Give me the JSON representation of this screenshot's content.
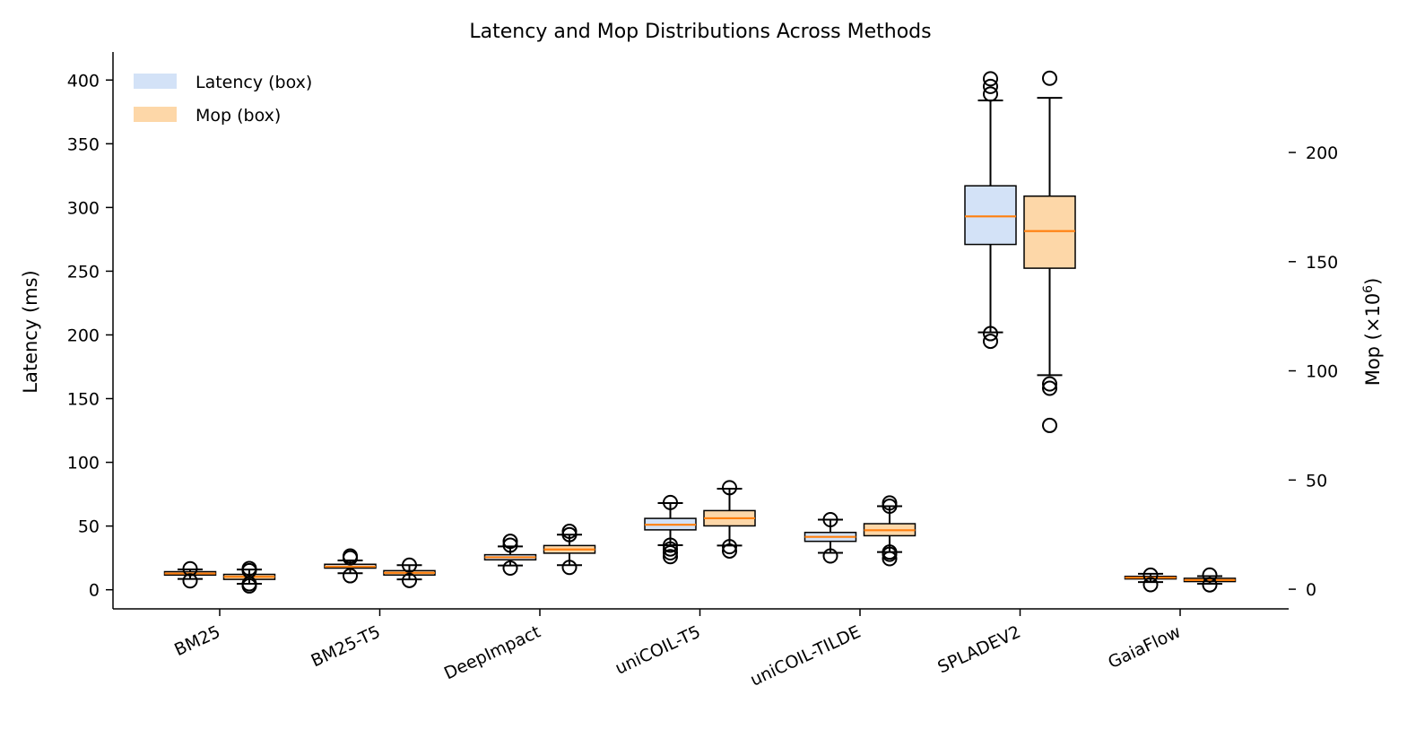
{
  "chart_data": {
    "type": "box",
    "title": "Latency and Mop Distributions Across Methods",
    "categories": [
      "BM25",
      "BM25-T5",
      "DeepImpact",
      "uniCOIL-T5",
      "uniCOIL-TILDE",
      "SPLADEV2",
      "GaiaFlow"
    ],
    "y_left": {
      "label": "Latency (ms)",
      "ticks": [
        0,
        50,
        100,
        150,
        200,
        250,
        300,
        350,
        400
      ],
      "lim": [
        -15,
        422
      ]
    },
    "y_right": {
      "label_main": "Mop (×10",
      "label_sup": "6",
      "label_end": ")",
      "ticks": [
        0,
        50,
        100,
        150,
        200
      ],
      "lim": [
        -9,
        246
      ]
    },
    "legend": {
      "position": "top-left",
      "entries": [
        "Latency (box)",
        "Mop (box)"
      ]
    },
    "colors": {
      "latency_fill": "#d3e2f7",
      "mop_fill": "#fdd7a8",
      "median": "#ff7f0e",
      "edge": "#000000"
    },
    "series": [
      {
        "name": "Latency (box)",
        "axis": "left",
        "boxes": [
          {
            "q1": 11.5,
            "median": 12.8,
            "q3": 14.2,
            "whisker_low": 8.5,
            "whisker_high": 16,
            "outliers": [
              7,
              16.5
            ]
          },
          {
            "q1": 17,
            "median": 18.2,
            "q3": 20,
            "whisker_low": 13,
            "whisker_high": 23,
            "outliers": [
              11,
              25,
              26.5
            ]
          },
          {
            "q1": 23.5,
            "median": 25.5,
            "q3": 27.5,
            "whisker_low": 19,
            "whisker_high": 34,
            "outliers": [
              17,
              35,
              38
            ]
          },
          {
            "q1": 47,
            "median": 51,
            "q3": 56,
            "whisker_low": 35,
            "whisker_high": 68,
            "outliers": [
              26,
              29,
              32,
              35,
              68.5
            ]
          },
          {
            "q1": 38,
            "median": 41.5,
            "q3": 45,
            "whisker_low": 29,
            "whisker_high": 55,
            "outliers": [
              26.5,
              55
            ]
          },
          {
            "q1": 271,
            "median": 293,
            "q3": 317,
            "whisker_low": 202,
            "whisker_high": 384,
            "outliers": [
              195,
              201,
              389,
              395,
              401
            ]
          },
          {
            "q1": 8.5,
            "median": 9.5,
            "q3": 10.5,
            "whisker_low": 6,
            "whisker_high": 12.5,
            "outliers": [
              4,
              11.5
            ]
          }
        ]
      },
      {
        "name": "Mop (box)",
        "axis": "right",
        "boxes": [
          {
            "q1": 4.5,
            "median": 5.7,
            "q3": 6.8,
            "whisker_low": 2.5,
            "whisker_high": 9,
            "outliers": [
              1.5,
              2.5,
              8.5,
              9.5
            ]
          },
          {
            "q1": 6.5,
            "median": 7.5,
            "q3": 8.5,
            "whisker_low": 4.5,
            "whisker_high": 11,
            "outliers": [
              4,
              11
            ]
          },
          {
            "q1": 16.5,
            "median": 18.2,
            "q3": 20,
            "whisker_low": 11,
            "whisker_high": 25,
            "outliers": [
              10,
              25,
              26.5
            ]
          },
          {
            "q1": 29,
            "median": 32.5,
            "q3": 36,
            "whisker_low": 20,
            "whisker_high": 46,
            "outliers": [
              17.5,
              19.5,
              46.5
            ]
          },
          {
            "q1": 24.5,
            "median": 27,
            "q3": 30,
            "whisker_low": 17,
            "whisker_high": 38,
            "outliers": [
              14,
              16,
              17,
              38,
              39.5
            ]
          },
          {
            "q1": 147,
            "median": 164,
            "q3": 180,
            "whisker_low": 98,
            "whisker_high": 225,
            "outliers": [
              75,
              92,
              94,
              234
            ]
          },
          {
            "q1": 3.5,
            "median": 4.2,
            "q3": 5,
            "whisker_low": 2.5,
            "whisker_high": 6,
            "outliers": [
              2,
              6.5
            ]
          }
        ]
      }
    ]
  }
}
